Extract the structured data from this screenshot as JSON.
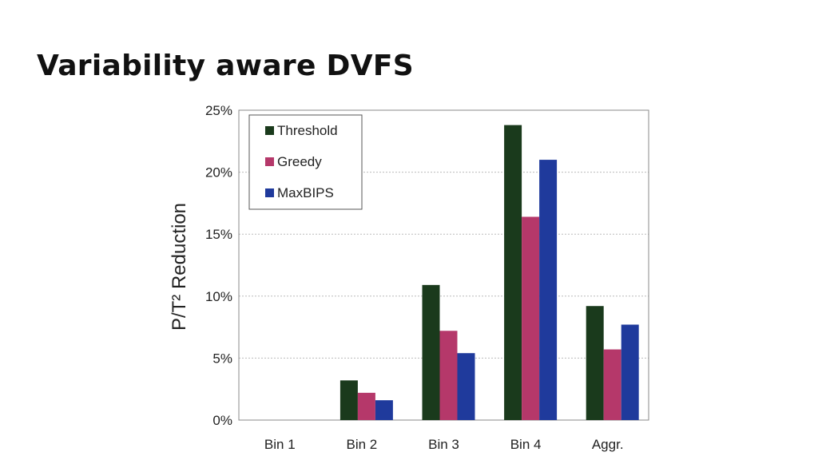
{
  "slide": {
    "title": "Variability aware DVFS"
  },
  "chart_data": {
    "type": "bar",
    "title": "",
    "xlabel": "",
    "ylabel": "P/T² Reduction",
    "ylim": [
      0,
      25
    ],
    "yticks": [
      "0%",
      "5%",
      "10%",
      "15%",
      "20%",
      "25%"
    ],
    "ytick_values": [
      0,
      5,
      10,
      15,
      20,
      25
    ],
    "categories": [
      "Bin 1",
      "Bin 2",
      "Bin 3",
      "Bin 4",
      "Aggr."
    ],
    "series": [
      {
        "name": "Threshold",
        "color": "#1a3a1c",
        "values": [
          0,
          3.2,
          10.9,
          23.8,
          9.2
        ]
      },
      {
        "name": "Greedy",
        "color": "#b5386a",
        "values": [
          0,
          2.2,
          7.2,
          16.4,
          5.7
        ]
      },
      {
        "name": "MaxBIPS",
        "color": "#1f3a9c",
        "values": [
          0,
          1.6,
          5.4,
          21.0,
          7.7
        ]
      }
    ],
    "grid": "horizontal dotted",
    "legend": "top-left"
  }
}
